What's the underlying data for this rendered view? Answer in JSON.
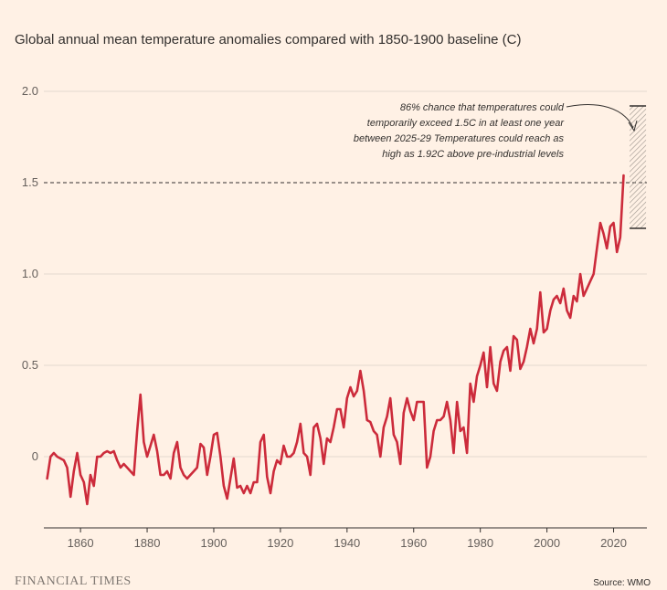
{
  "title": "Global annual mean temperature anomalies compared with 1850-1900 baseline (C)",
  "brand": "FINANCIAL TIMES",
  "source": "Source: WMO",
  "chart_data": {
    "type": "line",
    "title": "Global annual mean temperature anomalies compared with 1850-1900 baseline (C)",
    "xlabel": "",
    "ylabel": "",
    "xlim": [
      1849,
      2030
    ],
    "ylim": [
      -0.4,
      2.0
    ],
    "x_ticks": [
      1860,
      1880,
      1900,
      1920,
      1940,
      1960,
      1980,
      2000,
      2020
    ],
    "x_tick_labels": [
      "1860",
      "1880",
      "1900",
      "1920",
      "1940",
      "1960",
      "1980",
      "2000",
      "2020"
    ],
    "y_ticks": [
      0,
      0.5,
      1.0,
      1.5,
      2.0
    ],
    "y_tick_labels": [
      "0",
      "0.5",
      "1.0",
      "1.5",
      "2.0"
    ],
    "grid": true,
    "line_color": "#cc2b3b",
    "reference_line": {
      "y": 1.5,
      "style": "dashed"
    },
    "projection_range": {
      "x": 2027,
      "low": 1.25,
      "high": 1.92
    },
    "annotation": [
      "86% chance that temperatures could",
      "temporarily exceed 1.5C in at least one year",
      "between 2025-29 Temperatures could reach as",
      "high as 1.92C above pre-industrial levels"
    ],
    "series": [
      {
        "x": [
          1850,
          1851,
          1852,
          1853,
          1854,
          1855,
          1856,
          1857,
          1858,
          1859,
          1860,
          1861,
          1862,
          1863,
          1864,
          1865,
          1866,
          1867,
          1868,
          1869,
          1870,
          1871,
          1872,
          1873,
          1874,
          1875,
          1876,
          1877,
          1878,
          1879,
          1880,
          1881,
          1882,
          1883,
          1884,
          1885,
          1886,
          1887,
          1888,
          1889,
          1890,
          1891,
          1892,
          1893,
          1894,
          1895,
          1896,
          1897,
          1898,
          1899,
          1900,
          1901,
          1902,
          1903,
          1904,
          1905,
          1906,
          1907,
          1908,
          1909,
          1910,
          1911,
          1912,
          1913,
          1914,
          1915,
          1916,
          1917,
          1918,
          1919,
          1920,
          1921,
          1922,
          1923,
          1924,
          1925,
          1926,
          1927,
          1928,
          1929,
          1930,
          1931,
          1932,
          1933,
          1934,
          1935,
          1936,
          1937,
          1938,
          1939,
          1940,
          1941,
          1942,
          1943,
          1944,
          1945,
          1946,
          1947,
          1948,
          1949,
          1950,
          1951,
          1952,
          1953,
          1954,
          1955,
          1956,
          1957,
          1958,
          1959,
          1960,
          1961,
          1962,
          1963,
          1964,
          1965,
          1966,
          1967,
          1968,
          1969,
          1970,
          1971,
          1972,
          1973,
          1974,
          1975,
          1976,
          1977,
          1978,
          1979,
          1980,
          1981,
          1982,
          1983,
          1984,
          1985,
          1986,
          1987,
          1988,
          1989,
          1990,
          1991,
          1992,
          1993,
          1994,
          1995,
          1996,
          1997,
          1998,
          1999,
          2000,
          2001,
          2002,
          2003,
          2004,
          2005,
          2006,
          2007,
          2008,
          2009,
          2010,
          2011,
          2012,
          2013,
          2014,
          2015,
          2016,
          2017,
          2018,
          2019,
          2020,
          2021,
          2022,
          2023
        ],
        "values": [
          -0.12,
          0.0,
          0.02,
          0.0,
          -0.01,
          -0.02,
          -0.06,
          -0.22,
          -0.08,
          0.02,
          -0.1,
          -0.14,
          -0.26,
          -0.1,
          -0.16,
          0.0,
          0.0,
          0.02,
          0.03,
          0.02,
          0.03,
          -0.02,
          -0.06,
          -0.04,
          -0.06,
          -0.08,
          -0.1,
          0.14,
          0.34,
          0.08,
          0.0,
          0.06,
          0.12,
          0.03,
          -0.1,
          -0.1,
          -0.08,
          -0.12,
          0.02,
          0.08,
          -0.06,
          -0.1,
          -0.12,
          -0.1,
          -0.08,
          -0.06,
          0.07,
          0.05,
          -0.1,
          0.0,
          0.12,
          0.13,
          0.0,
          -0.16,
          -0.23,
          -0.12,
          -0.01,
          -0.17,
          -0.16,
          -0.2,
          -0.16,
          -0.2,
          -0.14,
          -0.14,
          0.08,
          0.12,
          -0.11,
          -0.2,
          -0.08,
          -0.02,
          -0.04,
          0.06,
          0.0,
          0.0,
          0.02,
          0.08,
          0.18,
          0.02,
          0.0,
          -0.1,
          0.16,
          0.18,
          0.1,
          -0.04,
          0.1,
          0.08,
          0.16,
          0.26,
          0.26,
          0.16,
          0.32,
          0.38,
          0.33,
          0.36,
          0.47,
          0.36,
          0.2,
          0.19,
          0.14,
          0.12,
          0.0,
          0.16,
          0.22,
          0.32,
          0.12,
          0.08,
          -0.04,
          0.24,
          0.32,
          0.25,
          0.2,
          0.3,
          0.3,
          0.3,
          -0.06,
          0.0,
          0.14,
          0.2,
          0.2,
          0.22,
          0.3,
          0.2,
          0.02,
          0.3,
          0.14,
          0.16,
          0.02,
          0.4,
          0.3,
          0.44,
          0.5,
          0.57,
          0.38,
          0.6,
          0.4,
          0.36,
          0.52,
          0.58,
          0.6,
          0.47,
          0.66,
          0.64,
          0.48,
          0.52,
          0.6,
          0.7,
          0.62,
          0.7,
          0.9,
          0.68,
          0.7,
          0.8,
          0.86,
          0.88,
          0.84,
          0.92,
          0.8,
          0.76,
          0.88,
          0.85,
          1.0,
          0.88,
          0.92,
          0.96,
          1.0,
          1.14,
          1.28,
          1.22,
          1.14,
          1.26,
          1.28,
          1.12,
          1.2,
          1.54
        ]
      }
    ]
  }
}
